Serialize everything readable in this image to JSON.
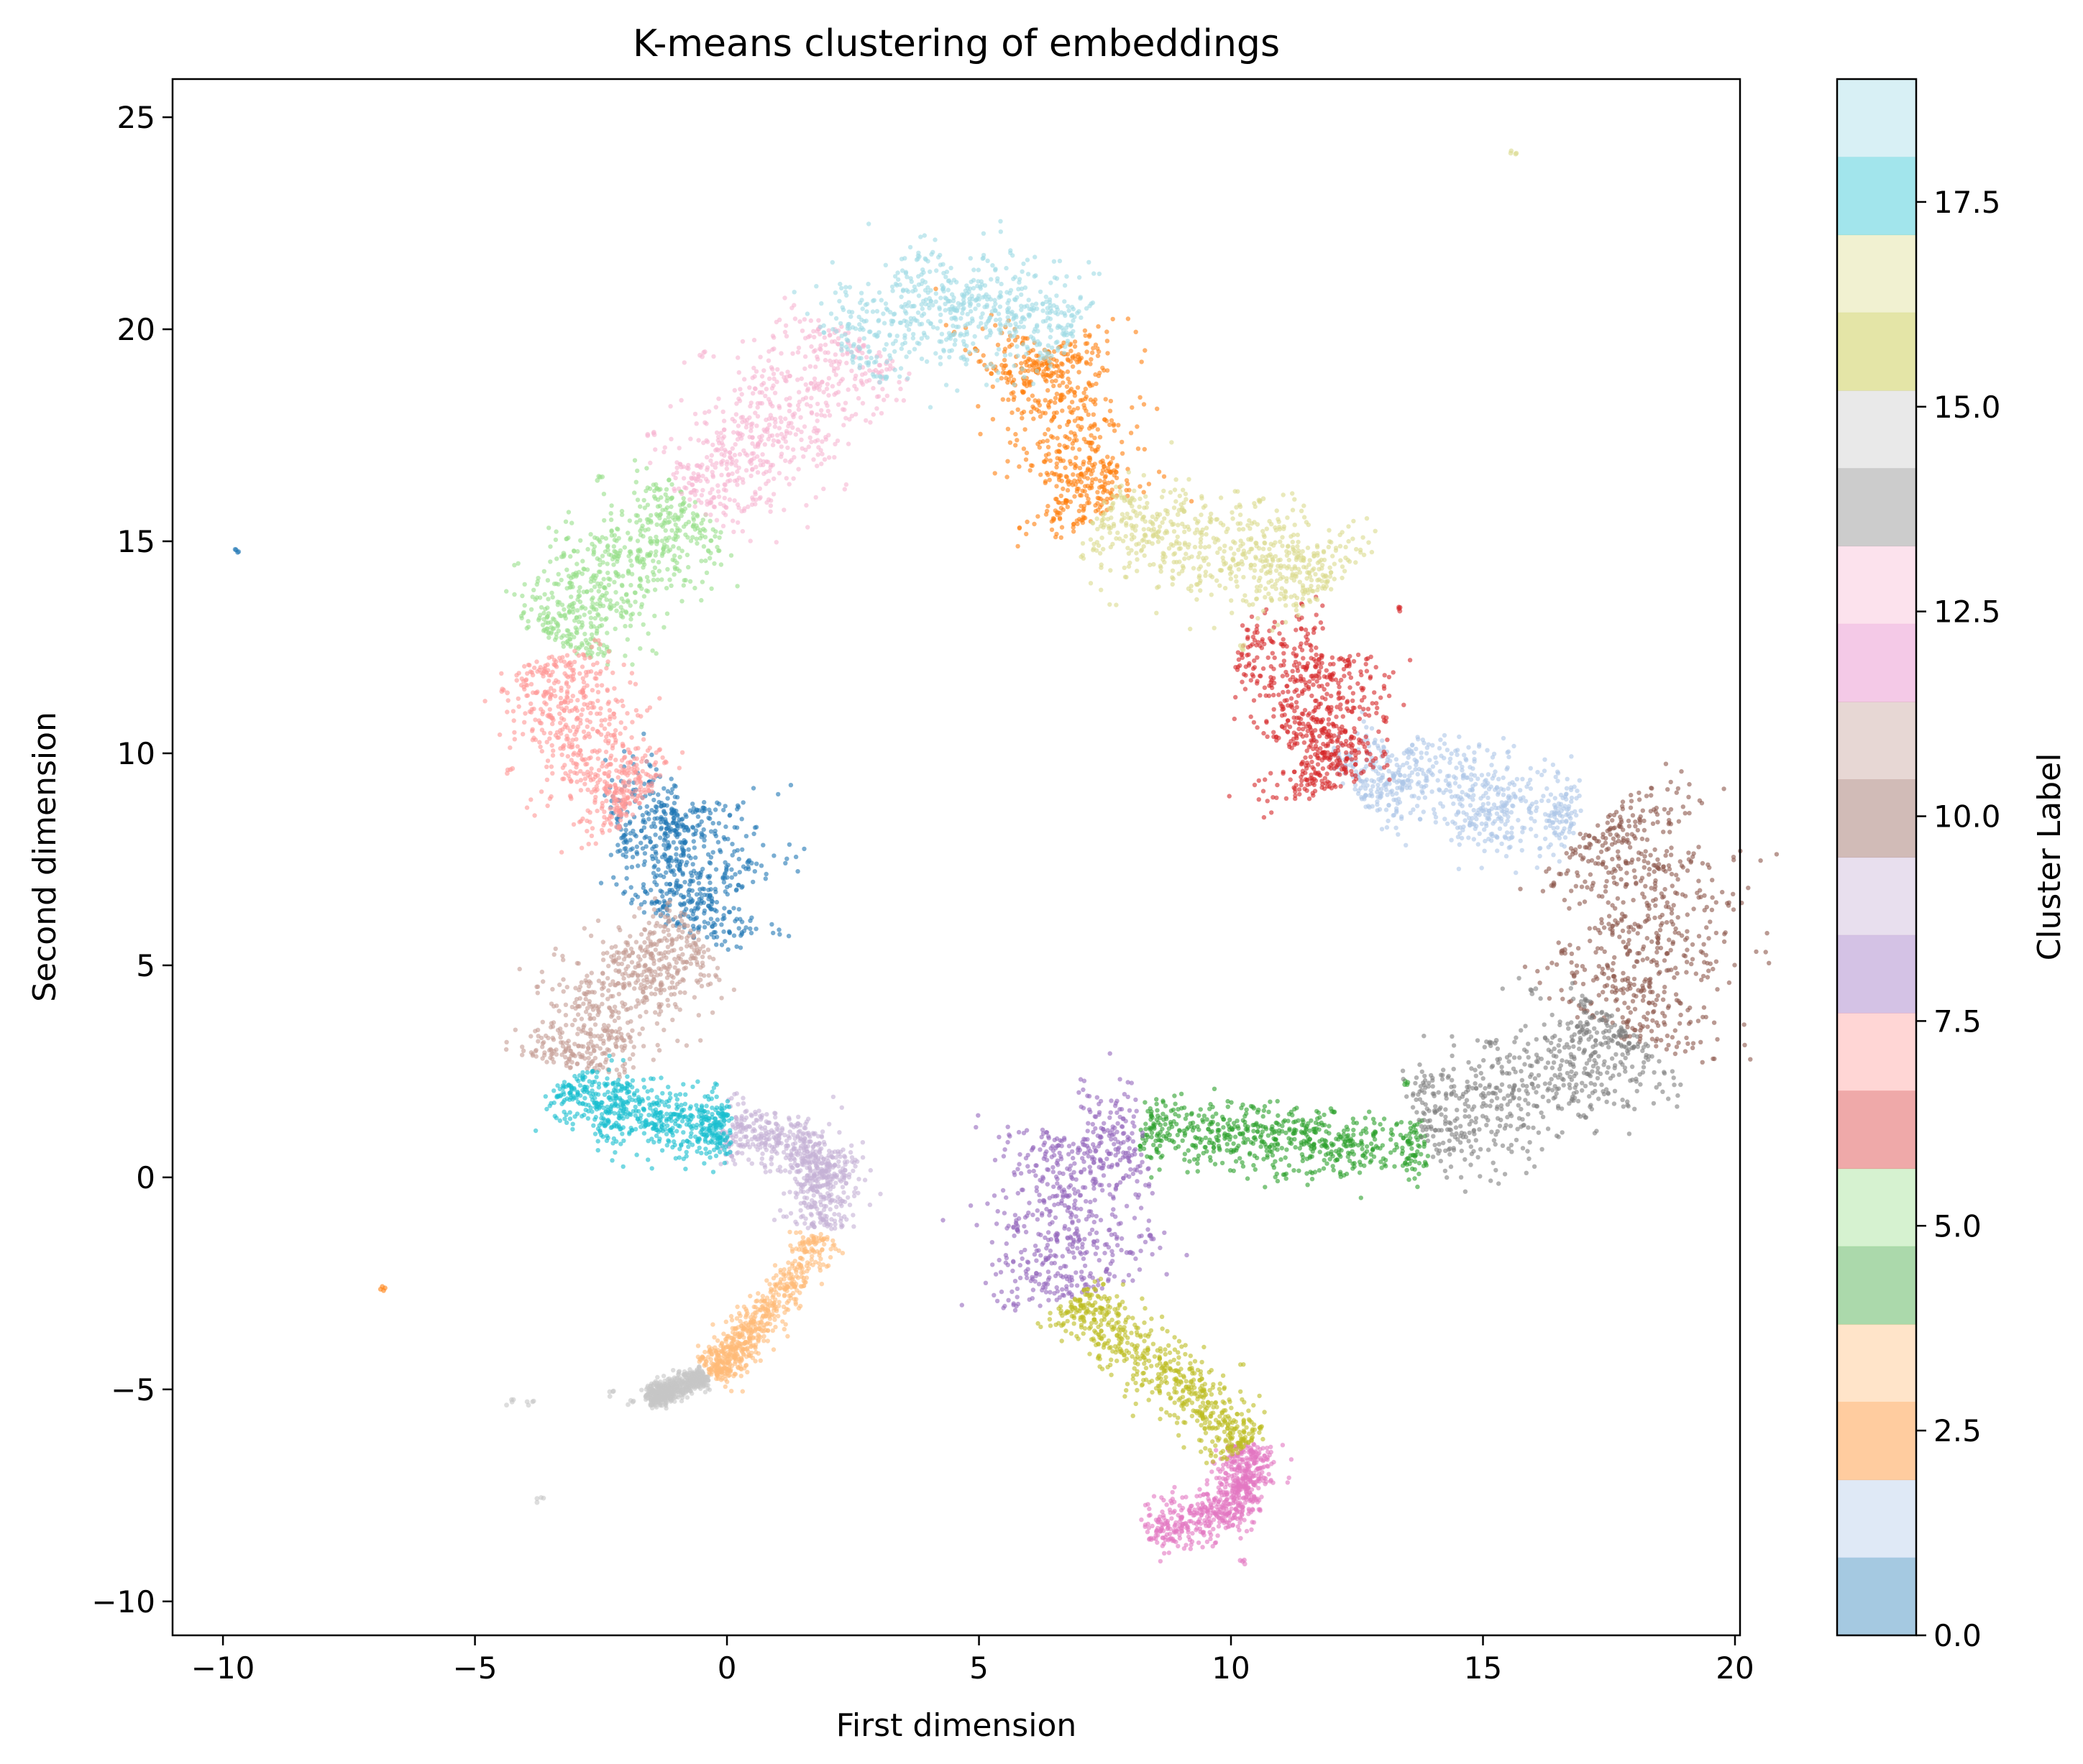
{
  "chart_data": {
    "type": "scatter",
    "title": "K-means clustering of embeddings",
    "xlabel": "First dimension",
    "ylabel": "Second dimension",
    "xlim": [
      -11,
      20.1
    ],
    "ylim": [
      -10.8,
      25.9
    ],
    "xticks": [
      {
        "value": -10,
        "label": "−10"
      },
      {
        "value": -5,
        "label": "−5"
      },
      {
        "value": 0,
        "label": "0"
      },
      {
        "value": 5,
        "label": "5"
      },
      {
        "value": 10,
        "label": "10"
      },
      {
        "value": 15,
        "label": "15"
      },
      {
        "value": 20,
        "label": "20"
      }
    ],
    "yticks": [
      {
        "value": -10,
        "label": "−10"
      },
      {
        "value": -5,
        "label": "−5"
      },
      {
        "value": 0,
        "label": "0"
      },
      {
        "value": 5,
        "label": "5"
      },
      {
        "value": 10,
        "label": "10"
      },
      {
        "value": 15,
        "label": "15"
      },
      {
        "value": 20,
        "label": "20"
      },
      {
        "value": 25,
        "label": "25"
      }
    ],
    "grid": false,
    "point_alpha": 0.6,
    "colorbar": {
      "label": "Cluster Label",
      "min": 0,
      "max": 19,
      "alpha": 0.4,
      "ticks": [
        {
          "value": 0,
          "label": "0.0"
        },
        {
          "value": 2.5,
          "label": "2.5"
        },
        {
          "value": 5,
          "label": "5.0"
        },
        {
          "value": 7.5,
          "label": "7.5"
        },
        {
          "value": 10,
          "label": "10.0"
        },
        {
          "value": 12.5,
          "label": "12.5"
        },
        {
          "value": 15,
          "label": "15.0"
        },
        {
          "value": 17.5,
          "label": "17.5"
        }
      ],
      "colors": [
        "#1f77b4",
        "#aec7e8",
        "#ff7f0e",
        "#ffbb78",
        "#2ca02c",
        "#98df8a",
        "#d62728",
        "#ff9896",
        "#9467bd",
        "#c5b0d5",
        "#8c564b",
        "#c49c94",
        "#e377c2",
        "#f7b6d2",
        "#7f7f7f",
        "#c7c7c7",
        "#bcbd22",
        "#dbdb8d",
        "#17becf",
        "#9edae5"
      ]
    },
    "clusters": [
      {
        "label": 0,
        "color": "#1f77b4",
        "width": 1.7,
        "path": [
          [
            -2.2,
            8.4
          ],
          [
            -1.0,
            8.6
          ],
          [
            -0.6,
            7.6
          ],
          [
            -0.3,
            6.6
          ],
          [
            -0.7,
            5.8
          ]
        ],
        "outliers": [
          [
            0.45,
            7.4
          ],
          [
            -9.7,
            14.8
          ],
          [
            -1.2,
            6.4
          ]
        ]
      },
      {
        "label": 1,
        "color": "#aec7e8",
        "width": 1.5,
        "path": [
          [
            12.4,
            9.2
          ],
          [
            13.3,
            9.7
          ],
          [
            14.5,
            9.0
          ],
          [
            15.6,
            8.8
          ],
          [
            16.8,
            8.5
          ]
        ],
        "outliers": [
          [
            13.5,
            10.0
          ],
          [
            15.5,
            8.0
          ]
        ]
      },
      {
        "label": 2,
        "color": "#ff7f0e",
        "width": 1.7,
        "path": [
          [
            5.5,
            18.7
          ],
          [
            6.3,
            19.4
          ],
          [
            6.9,
            18.4
          ],
          [
            6.9,
            17.1
          ],
          [
            6.8,
            16.3
          ],
          [
            7.4,
            15.6
          ]
        ],
        "outliers": [
          [
            -6.8,
            -2.6
          ]
        ]
      },
      {
        "label": 3,
        "color": "#ffbb78",
        "width": 0.6,
        "path": [
          [
            1.8,
            -1.4
          ],
          [
            1.2,
            -2.6
          ],
          [
            0.5,
            -3.5
          ],
          [
            0.1,
            -4.2
          ],
          [
            -0.3,
            -4.6
          ]
        ],
        "outliers": []
      },
      {
        "label": 4,
        "color": "#2ca02c",
        "width": 1.0,
        "path": [
          [
            8.3,
            1.1
          ],
          [
            9.6,
            1.0
          ],
          [
            11.0,
            0.9
          ],
          [
            12.3,
            0.7
          ],
          [
            13.8,
            0.7
          ]
        ],
        "outliers": [
          [
            10.5,
            1.6
          ],
          [
            12.0,
            1.6
          ],
          [
            13.5,
            2.2
          ]
        ]
      },
      {
        "label": 5,
        "color": "#98df8a",
        "width": 1.7,
        "path": [
          [
            -3.4,
            12.7
          ],
          [
            -2.7,
            13.8
          ],
          [
            -1.6,
            14.9
          ],
          [
            -0.6,
            15.7
          ]
        ],
        "outliers": [
          [
            -3.3,
            14.7
          ],
          [
            -2.5,
            16.5
          ]
        ]
      },
      {
        "label": 6,
        "color": "#d62728",
        "width": 1.6,
        "path": [
          [
            10.2,
            12.4
          ],
          [
            11.8,
            12.2
          ],
          [
            12.0,
            10.8
          ],
          [
            11.6,
            10.0
          ],
          [
            12.0,
            9.2
          ]
        ],
        "outliers": [
          [
            13.3,
            13.4
          ],
          [
            13.1,
            10.8
          ]
        ]
      },
      {
        "label": 7,
        "color": "#ff9896",
        "width": 1.6,
        "path": [
          [
            -3.5,
            12.2
          ],
          [
            -3.1,
            11.2
          ],
          [
            -2.7,
            10.2
          ],
          [
            -2.3,
            9.2
          ],
          [
            -1.8,
            8.8
          ]
        ],
        "outliers": [
          [
            -4.4,
            11.5
          ],
          [
            -4.3,
            9.6
          ]
        ]
      },
      {
        "label": 8,
        "color": "#9467bd",
        "width": 1.9,
        "path": [
          [
            8.2,
            0.9
          ],
          [
            7.1,
            0.7
          ],
          [
            6.6,
            -0.4
          ],
          [
            6.5,
            -1.6
          ],
          [
            6.8,
            -2.8
          ]
        ],
        "outliers": [
          [
            8.0,
            -1.8
          ],
          [
            8.4,
            -1.4
          ]
        ]
      },
      {
        "label": 9,
        "color": "#c5b0d5",
        "width": 0.9,
        "path": [
          [
            0.0,
            1.1
          ],
          [
            1.0,
            1.0
          ],
          [
            1.8,
            0.5
          ],
          [
            2.0,
            -0.2
          ],
          [
            1.9,
            -1.2
          ]
        ],
        "outliers": []
      },
      {
        "label": 10,
        "color": "#8c564b",
        "width": 2.3,
        "path": [
          [
            17.4,
            8.4
          ],
          [
            18.2,
            7.6
          ],
          [
            18.5,
            6.0
          ],
          [
            18.4,
            4.5
          ],
          [
            17.8,
            3.4
          ]
        ],
        "outliers": [
          [
            16.4,
            6.9
          ],
          [
            16.6,
            5.3
          ],
          [
            16.8,
            4.8
          ]
        ]
      },
      {
        "label": 11,
        "color": "#c49c94",
        "width": 1.6,
        "path": [
          [
            -0.6,
            5.6
          ],
          [
            -1.3,
            5.2
          ],
          [
            -2.1,
            4.6
          ],
          [
            -2.8,
            3.5
          ],
          [
            -3.0,
            2.6
          ]
        ],
        "outliers": []
      },
      {
        "label": 12,
        "color": "#e377c2",
        "width": 0.8,
        "path": [
          [
            10.3,
            -6.4
          ],
          [
            10.3,
            -7.3
          ],
          [
            9.6,
            -8.0
          ],
          [
            8.4,
            -8.3
          ]
        ],
        "outliers": [
          [
            10.2,
            -9.1
          ]
        ]
      },
      {
        "label": 13,
        "color": "#f7b6d2",
        "width": 1.9,
        "path": [
          [
            -0.7,
            16.0
          ],
          [
            0.5,
            17.2
          ],
          [
            1.6,
            18.4
          ],
          [
            2.6,
            19.7
          ]
        ],
        "outliers": [
          [
            -1.5,
            17.5
          ],
          [
            -0.5,
            19.4
          ]
        ]
      },
      {
        "label": 14,
        "color": "#7f7f7f",
        "width": 1.9,
        "path": [
          [
            13.8,
            1.2
          ],
          [
            15.0,
            1.6
          ],
          [
            16.2,
            2.1
          ],
          [
            17.3,
            2.8
          ],
          [
            17.9,
            3.4
          ]
        ],
        "outliers": [
          [
            15.2,
            3.2
          ],
          [
            16.0,
            4.4
          ]
        ]
      },
      {
        "label": 15,
        "color": "#c7c7c7",
        "width": 0.35,
        "path": [
          [
            -0.5,
            -4.7
          ],
          [
            -1.1,
            -5.0
          ],
          [
            -1.5,
            -5.2
          ]
        ],
        "outliers": [
          [
            -4.3,
            -5.3
          ],
          [
            -3.9,
            -5.3
          ],
          [
            -2.3,
            -5.1
          ],
          [
            -1.9,
            -5.3
          ],
          [
            -3.7,
            -7.6
          ]
        ]
      },
      {
        "label": 16,
        "color": "#bcbd22",
        "width": 1.0,
        "path": [
          [
            6.9,
            -2.9
          ],
          [
            7.6,
            -3.7
          ],
          [
            8.6,
            -4.6
          ],
          [
            9.6,
            -5.4
          ],
          [
            10.3,
            -6.3
          ]
        ],
        "outliers": []
      },
      {
        "label": 17,
        "color": "#dbdb8d",
        "width": 1.7,
        "path": [
          [
            7.4,
            15.6
          ],
          [
            8.6,
            15.0
          ],
          [
            10.0,
            14.8
          ],
          [
            11.3,
            14.5
          ],
          [
            11.9,
            13.9
          ]
        ],
        "outliers": [
          [
            15.6,
            24.2
          ],
          [
            10.6,
            16.0
          ],
          [
            9.0,
            15.7
          ],
          [
            10.2,
            12.5
          ]
        ]
      },
      {
        "label": 18,
        "color": "#17becf",
        "width": 1.1,
        "path": [
          [
            -3.0,
            2.3
          ],
          [
            -2.5,
            1.6
          ],
          [
            -1.6,
            1.4
          ],
          [
            -0.5,
            1.2
          ],
          [
            0.0,
            1.2
          ]
        ],
        "outliers": []
      },
      {
        "label": 19,
        "color": "#9edae5",
        "width": 1.7,
        "path": [
          [
            2.4,
            19.4
          ],
          [
            3.4,
            20.5
          ],
          [
            4.6,
            20.8
          ],
          [
            5.8,
            20.4
          ],
          [
            6.8,
            19.8
          ]
        ],
        "outliers": [
          [
            3.1,
            18.8
          ],
          [
            4.7,
            19.3
          ]
        ]
      }
    ]
  }
}
